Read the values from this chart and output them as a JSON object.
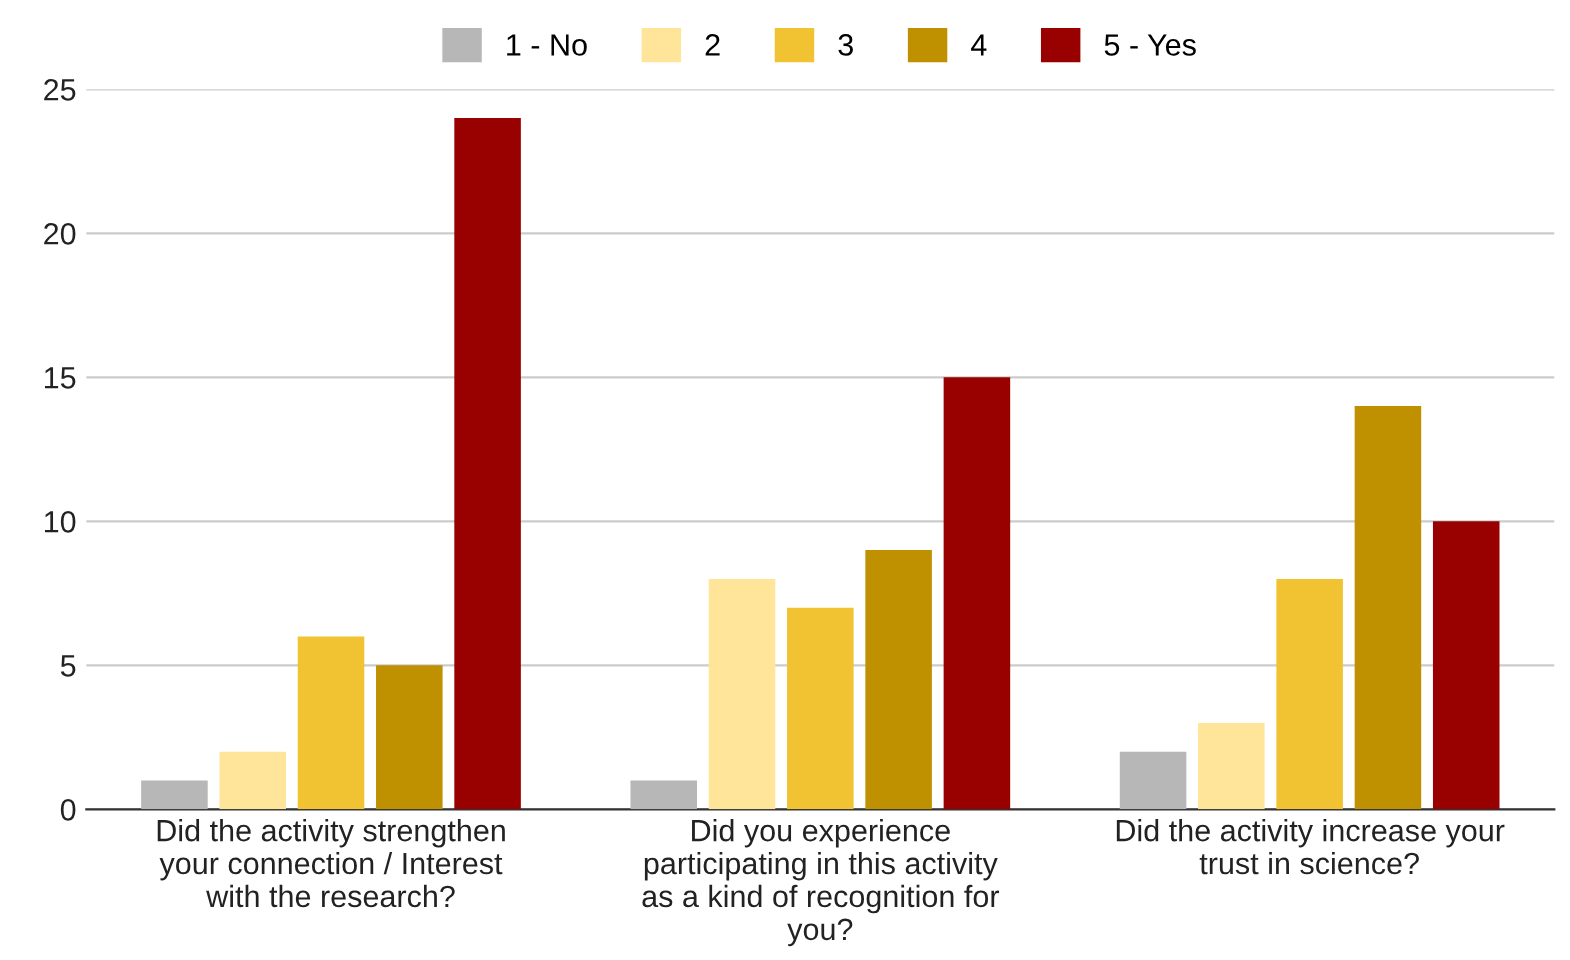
{
  "chart_data": {
    "type": "bar",
    "categories": [
      "Did the activity strengthen\nyour connection / Interest\nwith the research?",
      "Did you experience\nparticipating in this activity\nas a kind of recognition for\nyou?",
      "Did the activity increase your\ntrust in science?"
    ],
    "series": [
      {
        "name": "1 - No",
        "color": "#b7b7b7",
        "values": [
          1,
          1,
          2
        ]
      },
      {
        "name": "2",
        "color": "#ffe599",
        "values": [
          2,
          8,
          3
        ]
      },
      {
        "name": "3",
        "color": "#f1c232",
        "values": [
          6,
          7,
          8
        ]
      },
      {
        "name": "4",
        "color": "#bf9000",
        "values": [
          5,
          9,
          14
        ]
      },
      {
        "name": "5 - Yes",
        "color": "#990000",
        "values": [
          24,
          15,
          10
        ]
      }
    ],
    "ylim": [
      0,
      25
    ],
    "yticks": [
      0,
      5,
      10,
      15,
      20,
      25
    ],
    "grid": "y",
    "legend": "top"
  }
}
